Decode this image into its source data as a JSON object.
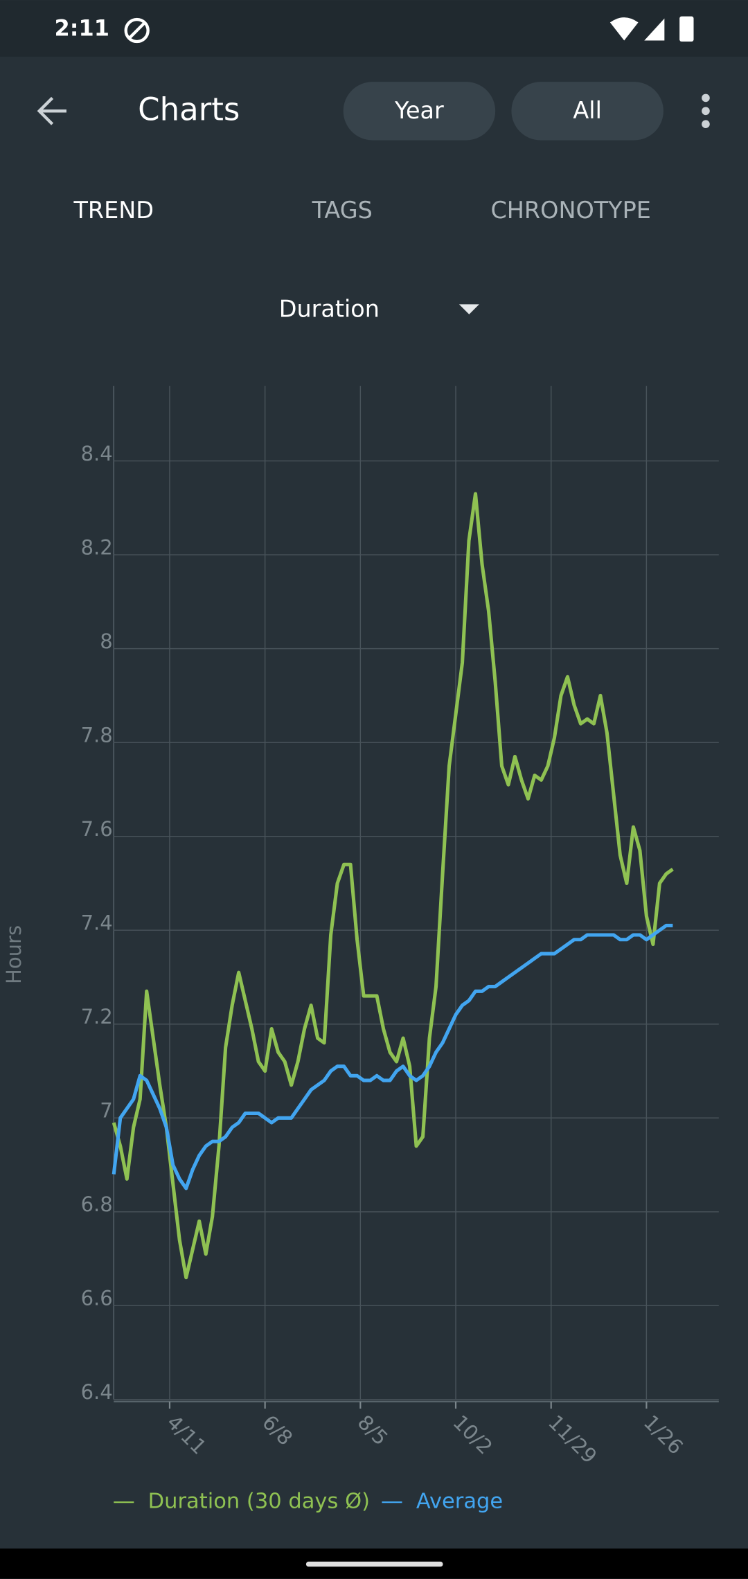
{
  "status_bar": {
    "time": "2:11"
  },
  "header": {
    "title": "Charts",
    "buttons": [
      "Year",
      "All"
    ]
  },
  "tabs": [
    "TREND",
    "TAGS",
    "CHRONOTYPE"
  ],
  "dropdown": "Duration",
  "chart_data": {
    "type": "line",
    "y_label": "Hours",
    "grid": true,
    "xlim": [
      0,
      368
    ],
    "xticks": [
      {
        "value": 34,
        "label": "4/11"
      },
      {
        "value": 92,
        "label": "6/8"
      },
      {
        "value": 150,
        "label": "8/5"
      },
      {
        "value": 208,
        "label": "10/2"
      },
      {
        "value": 266,
        "label": "11/29"
      },
      {
        "value": 324,
        "label": "1/26"
      }
    ],
    "ylim": [
      6.4,
      8.56
    ],
    "yticks": [
      6.4,
      6.6,
      6.8,
      7,
      7.2,
      7.4,
      7.6,
      7.8,
      8,
      8.2,
      8.4
    ],
    "x": [
      0,
      4,
      8,
      12,
      16,
      20,
      24,
      28,
      32,
      36,
      40,
      44,
      48,
      52,
      56,
      60,
      64,
      68,
      72,
      76,
      80,
      84,
      88,
      92,
      96,
      100,
      104,
      108,
      112,
      116,
      120,
      124,
      128,
      132,
      136,
      140,
      144,
      148,
      152,
      156,
      160,
      164,
      168,
      172,
      176,
      180,
      184,
      188,
      192,
      196,
      200,
      204,
      208,
      212,
      216,
      220,
      224,
      228,
      232,
      236,
      240,
      244,
      248,
      252,
      256,
      260,
      264,
      268,
      272,
      276,
      280,
      284,
      288,
      292,
      296,
      300,
      304,
      308,
      312,
      316,
      320,
      324,
      328,
      332,
      336,
      340
    ],
    "series": [
      {
        "name": "Duration (30 days Ø)",
        "color": "#8fc152",
        "values": [
          6.99,
          6.94,
          6.87,
          6.98,
          7.04,
          7.27,
          7.17,
          7.07,
          6.98,
          6.86,
          6.74,
          6.66,
          6.72,
          6.78,
          6.71,
          6.79,
          6.94,
          7.15,
          7.24,
          7.31,
          7.25,
          7.19,
          7.12,
          7.1,
          7.19,
          7.14,
          7.12,
          7.07,
          7.12,
          7.19,
          7.24,
          7.17,
          7.16,
          7.39,
          7.5,
          7.54,
          7.54,
          7.38,
          7.26,
          7.26,
          7.26,
          7.19,
          7.14,
          7.12,
          7.17,
          7.11,
          6.94,
          6.96,
          7.17,
          7.28,
          7.52,
          7.75,
          7.86,
          7.97,
          8.23,
          8.33,
          8.18,
          8.08,
          7.93,
          7.75,
          7.71,
          7.77,
          7.72,
          7.68,
          7.73,
          7.72,
          7.75,
          7.81,
          7.9,
          7.94,
          7.88,
          7.84,
          7.85,
          7.84,
          7.9,
          7.82,
          7.69,
          7.56,
          7.5,
          7.62,
          7.57,
          7.43,
          7.37,
          7.5,
          7.52,
          7.53
        ]
      },
      {
        "name": "Average",
        "color": "#42a5f0",
        "values": [
          6.88,
          7.0,
          7.02,
          7.04,
          7.09,
          7.08,
          7.05,
          7.02,
          6.98,
          6.9,
          6.87,
          6.85,
          6.89,
          6.92,
          6.94,
          6.95,
          6.95,
          6.96,
          6.98,
          6.99,
          7.01,
          7.01,
          7.01,
          7.0,
          6.99,
          7.0,
          7.0,
          7.0,
          7.02,
          7.04,
          7.06,
          7.07,
          7.08,
          7.1,
          7.11,
          7.11,
          7.09,
          7.09,
          7.08,
          7.08,
          7.09,
          7.08,
          7.08,
          7.1,
          7.11,
          7.09,
          7.08,
          7.09,
          7.11,
          7.14,
          7.16,
          7.19,
          7.22,
          7.24,
          7.25,
          7.27,
          7.27,
          7.28,
          7.28,
          7.29,
          7.3,
          7.31,
          7.32,
          7.33,
          7.34,
          7.35,
          7.35,
          7.35,
          7.36,
          7.37,
          7.38,
          7.38,
          7.39,
          7.39,
          7.39,
          7.39,
          7.39,
          7.38,
          7.38,
          7.39,
          7.39,
          7.38,
          7.39,
          7.4,
          7.41,
          7.41
        ]
      }
    ]
  }
}
